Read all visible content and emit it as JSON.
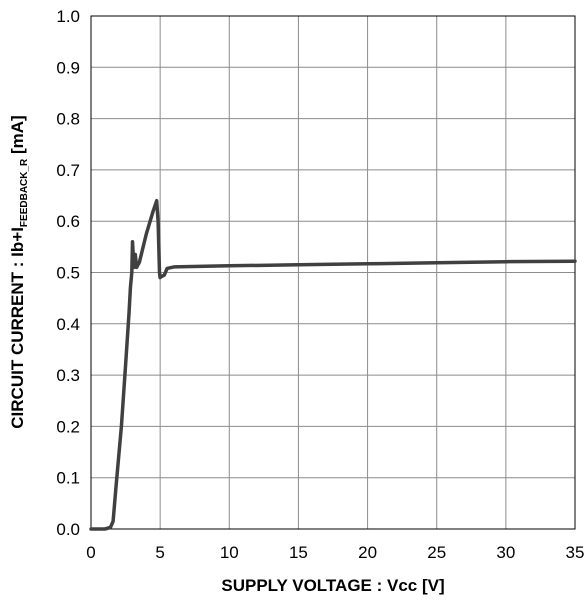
{
  "chart_data": {
    "type": "line",
    "xlabel": "SUPPLY VOLTAGE : Vcc [V]",
    "ylabel": {
      "prefix": "CIRCUIT CURRENT : Ib+I",
      "subscript": "FEEDBACK_R",
      "suffix": " [mA]"
    },
    "xlim": [
      0,
      35
    ],
    "ylim": [
      0,
      1.0
    ],
    "xticks": [
      "0",
      "5",
      "10",
      "15",
      "20",
      "25",
      "30",
      "35"
    ],
    "yticks": [
      "0.0",
      "0.1",
      "0.2",
      "0.3",
      "0.4",
      "0.5",
      "0.6",
      "0.7",
      "0.8",
      "0.9",
      "1.0"
    ],
    "grid": true,
    "series": [
      {
        "color": "#404040",
        "x": [
          0,
          1.0,
          1.4,
          1.6,
          1.8,
          2.2,
          2.5,
          2.75,
          2.85,
          2.95,
          3.0,
          3.1,
          3.2,
          3.3,
          3.5,
          4.0,
          4.5,
          4.75,
          4.85,
          4.95,
          5.0,
          5.1,
          5.3,
          5.5,
          6.0,
          10,
          15,
          20,
          25,
          30,
          35
        ],
        "y": [
          0,
          0,
          0.003,
          0.015,
          0.08,
          0.2,
          0.32,
          0.42,
          0.47,
          0.5,
          0.56,
          0.51,
          0.535,
          0.51,
          0.52,
          0.575,
          0.62,
          0.64,
          0.6,
          0.5,
          0.49,
          0.492,
          0.495,
          0.508,
          0.511,
          0.513,
          0.515,
          0.517,
          0.519,
          0.521,
          0.522
        ]
      }
    ]
  }
}
